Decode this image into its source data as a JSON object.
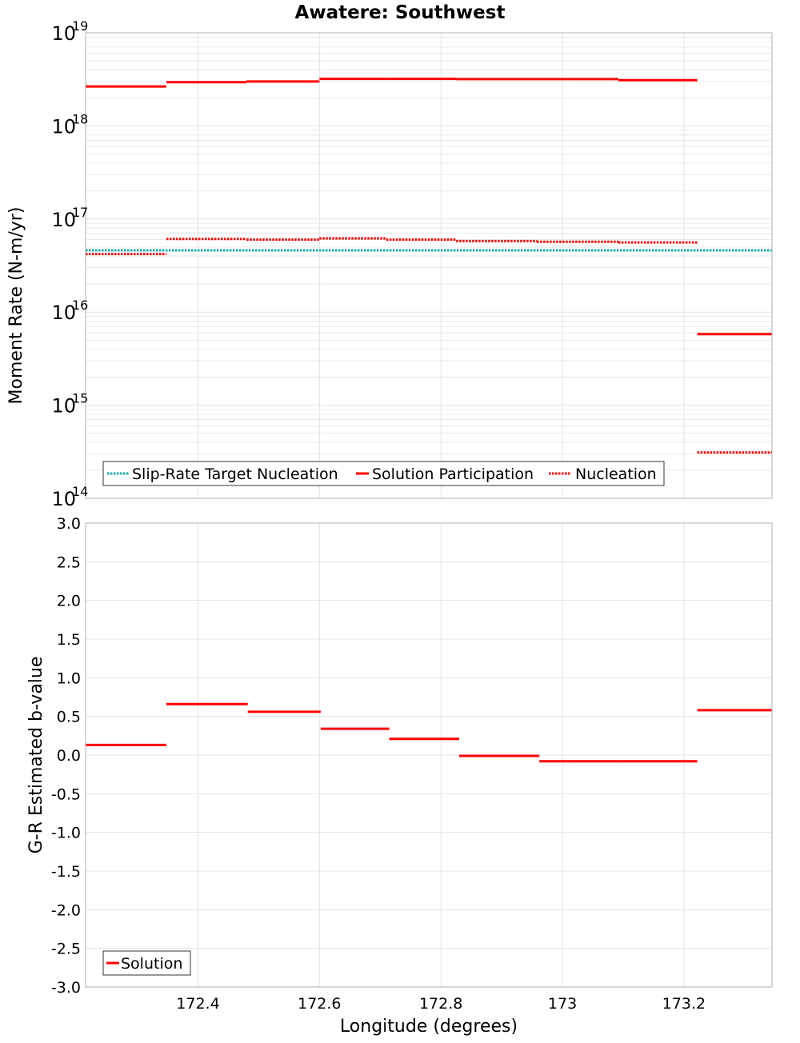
{
  "colors": {
    "target": "#1aabab",
    "solution": "#ff0000",
    "grid": "#e4e4e4",
    "frame": "#b0b0b0"
  },
  "chart_data": [
    {
      "type": "line",
      "title": "Awatere: Southwest",
      "xlabel": "",
      "ylabel": "Moment Rate (N-m/yr)",
      "yscale": "log",
      "xlim": [
        172.215,
        173.345
      ],
      "ylim": [
        100000000000000.0,
        1e+19
      ],
      "ytick_exponents": [
        14,
        15,
        16,
        17,
        18,
        19
      ],
      "ytick_base": "10",
      "grid": true,
      "legend_position": "bottom-left",
      "series": [
        {
          "name": "Slip-Rate Target Nucleation",
          "style": "dotted",
          "color": "target",
          "steps": [
            {
              "x0": 172.215,
              "x1": 173.345,
              "y": 4.6e+16
            }
          ]
        },
        {
          "name": "Solution Participation",
          "style": "solid",
          "color": "solution",
          "steps": [
            {
              "x0": 172.215,
              "x1": 172.348,
              "y": 2.65e+18
            },
            {
              "x0": 172.348,
              "x1": 172.48,
              "y": 2.95e+18
            },
            {
              "x0": 172.48,
              "x1": 172.6,
              "y": 3e+18
            },
            {
              "x0": 172.6,
              "x1": 172.71,
              "y": 3.2e+18
            },
            {
              "x0": 172.71,
              "x1": 172.825,
              "y": 3.2e+18
            },
            {
              "x0": 172.825,
              "x1": 172.958,
              "y": 3.18e+18
            },
            {
              "x0": 172.958,
              "x1": 173.092,
              "y": 3.18e+18
            },
            {
              "x0": 173.092,
              "x1": 173.222,
              "y": 3.1e+18
            },
            {
              "x0": 173.222,
              "x1": 173.345,
              "y": 5800000000000000.0
            }
          ]
        },
        {
          "name": "Nucleation",
          "style": "dotted",
          "color": "solution",
          "steps": [
            {
              "x0": 172.215,
              "x1": 172.348,
              "y": 4.2e+16
            },
            {
              "x0": 172.348,
              "x1": 172.48,
              "y": 6.1e+16
            },
            {
              "x0": 172.48,
              "x1": 172.6,
              "y": 6e+16
            },
            {
              "x0": 172.6,
              "x1": 172.71,
              "y": 6.2e+16
            },
            {
              "x0": 172.71,
              "x1": 172.825,
              "y": 6e+16
            },
            {
              "x0": 172.825,
              "x1": 172.958,
              "y": 5.8e+16
            },
            {
              "x0": 172.958,
              "x1": 173.092,
              "y": 5.7e+16
            },
            {
              "x0": 173.092,
              "x1": 173.222,
              "y": 5.6e+16
            },
            {
              "x0": 173.222,
              "x1": 173.345,
              "y": 310000000000000.0
            }
          ]
        }
      ]
    },
    {
      "type": "line",
      "title": "",
      "xlabel": "Longitude (degrees)",
      "ylabel": "G-R Estimated b-value",
      "xlim": [
        172.215,
        173.345
      ],
      "ylim": [
        -3.0,
        3.0
      ],
      "xticks": [
        172.4,
        172.6,
        172.8,
        173.0,
        173.2
      ],
      "xtick_labels": [
        "172.4",
        "172.6",
        "172.8",
        "173",
        "173.2"
      ],
      "yticks": [
        -3.0,
        -2.5,
        -2.0,
        -1.5,
        -1.0,
        -0.5,
        0.0,
        0.5,
        1.0,
        1.5,
        2.0,
        2.5,
        3.0
      ],
      "ytick_labels": [
        "-3.0",
        "-2.5",
        "-2.0",
        "-1.5",
        "-1.0",
        "-0.5",
        "0.0",
        "0.5",
        "1.0",
        "1.5",
        "2.0",
        "2.5",
        "3.0"
      ],
      "grid": true,
      "legend_position": "bottom-left",
      "series": [
        {
          "name": "Solution",
          "style": "solid",
          "color": "solution",
          "steps": [
            {
              "x0": 172.215,
              "x1": 172.348,
              "y": 0.13
            },
            {
              "x0": 172.348,
              "x1": 172.482,
              "y": 0.66
            },
            {
              "x0": 172.482,
              "x1": 172.602,
              "y": 0.56
            },
            {
              "x0": 172.602,
              "x1": 172.715,
              "y": 0.34
            },
            {
              "x0": 172.715,
              "x1": 172.83,
              "y": 0.21
            },
            {
              "x0": 172.83,
              "x1": 172.962,
              "y": -0.01
            },
            {
              "x0": 172.962,
              "x1": 173.092,
              "y": -0.08
            },
            {
              "x0": 173.092,
              "x1": 173.222,
              "y": -0.08
            },
            {
              "x0": 173.222,
              "x1": 173.345,
              "y": 0.58
            }
          ]
        }
      ]
    }
  ]
}
